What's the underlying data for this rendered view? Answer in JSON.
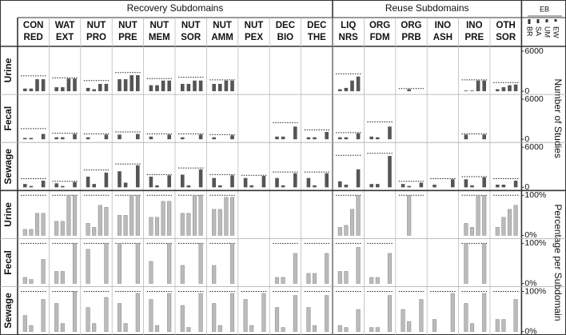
{
  "chart_data": {
    "type": "small_multiples_bar",
    "groups": [
      {
        "title": "Recovery Subdomains",
        "count": 10
      },
      {
        "title": "Reuse Subdomains",
        "count": 6
      }
    ],
    "columns": [
      [
        "CON",
        "RED"
      ],
      [
        "WAT",
        "EXT"
      ],
      [
        "NUT",
        "PRO"
      ],
      [
        "NUT",
        "PRE"
      ],
      [
        "NUT",
        "MEM"
      ],
      [
        "NUT",
        "SOR"
      ],
      [
        "NUT",
        "AMM"
      ],
      [
        "NUT",
        "PEX"
      ],
      [
        "DEC",
        "BIO"
      ],
      [
        "DEC",
        "THE"
      ],
      [
        "LIQ",
        "NRS"
      ],
      [
        "ORG",
        "FDM"
      ],
      [
        "ORG",
        "PRB"
      ],
      [
        "INO",
        "ASH"
      ],
      [
        "INO",
        "PRE"
      ],
      [
        "OTH",
        "SOR"
      ]
    ],
    "legend": {
      "title": "EB",
      "series": [
        "BR",
        "SA",
        "UM",
        "EW"
      ]
    },
    "panels": [
      {
        "axis_label": "Number of Studies",
        "ylim": [
          0,
          6000
        ],
        "yticks": [
          0,
          6000
        ],
        "color": "#555555",
        "rows": [
          {
            "name": "Urine",
            "cells": [
              [
                400,
                400,
                1800,
                1800
              ],
              [
                600,
                600,
                1900,
                1900
              ],
              [
                500,
                300,
                1100,
                1100
              ],
              [
                1800,
                1800,
                2400,
                2400
              ],
              [
                900,
                900,
                1600,
                1600
              ],
              [
                1100,
                1100,
                1600,
                1600
              ],
              [
                1100,
                1100,
                1600,
                1600
              ],
              null,
              null,
              null,
              [
                300,
                500,
                1600,
                2200
              ],
              null,
              [
                0,
                300,
                0,
                0
              ],
              null,
              [
                100,
                100,
                1600,
                1600
              ],
              [
                300,
                600,
                900,
                1000
              ]
            ],
            "totals": [
              2300,
              2000,
              1600,
              2800,
              1900,
              2100,
              1700,
              null,
              null,
              null,
              2600,
              null,
              400,
              null,
              1700,
              1300
            ]
          },
          {
            "name": "Fecal",
            "cells": [
              [
                200,
                200,
                0,
                800
              ],
              [
                300,
                300,
                0,
                800
              ],
              [
                300,
                0,
                0,
                700
              ],
              [
                700,
                0,
                0,
                800
              ],
              [
                400,
                0,
                0,
                700
              ],
              [
                300,
                0,
                0,
                700
              ],
              [
                300,
                0,
                0,
                600
              ],
              null,
              [
                400,
                400,
                0,
                1900
              ],
              [
                300,
                300,
                0,
                1100
              ],
              [
                300,
                300,
                0,
                900
              ],
              [
                400,
                300,
                0,
                1900
              ],
              null,
              null,
              [
                700,
                0,
                0,
                700
              ],
              null
            ],
            "totals": [
              1600,
              900,
              800,
              1100,
              800,
              800,
              700,
              null,
              2500,
              1400,
              1000,
              2600,
              null,
              null,
              800,
              null
            ]
          },
          {
            "name": "Sewage",
            "cells": [
              [
                500,
                200,
                0,
                1000
              ],
              [
                600,
                200,
                0,
                800
              ],
              [
                1600,
                500,
                0,
                2200
              ],
              [
                2400,
                700,
                0,
                3300
              ],
              [
                1600,
                300,
                0,
                1800
              ],
              [
                1900,
                300,
                0,
                2700
              ],
              [
                1400,
                300,
                0,
                1800
              ],
              [
                1400,
                300,
                0,
                1700
              ],
              [
                1400,
                300,
                0,
                2100
              ],
              [
                1400,
                300,
                0,
                2100
              ],
              [
                900,
                400,
                0,
                2700
              ],
              [
                500,
                500,
                0,
                4700
              ],
              [
                500,
                200,
                0,
                700
              ],
              [
                400,
                0,
                0,
                1200
              ],
              [
                1200,
                300,
                0,
                1500
              ],
              [
                400,
                400,
                0,
                1000
              ]
            ],
            "totals": [
              1300,
              900,
              2600,
              3500,
              1900,
              2900,
              1900,
              1800,
              2300,
              2300,
              4800,
              5100,
              900,
              1300,
              1600,
              1300
            ]
          }
        ]
      },
      {
        "axis_label": "Percentage per Subdomain",
        "ylim": [
          0,
          100
        ],
        "yticks": [
          {
            "value": 0,
            "label": "0%"
          },
          {
            "value": 100,
            "label": "100%"
          }
        ],
        "color": "#bbbbbb",
        "rows": [
          {
            "name": "Urine",
            "cells": [
              [
                15,
                15,
                55,
                55
              ],
              [
                35,
                35,
                100,
                100
              ],
              [
                30,
                20,
                75,
                70
              ],
              [
                50,
                50,
                100,
                100
              ],
              [
                45,
                45,
                85,
                85
              ],
              [
                55,
                55,
                100,
                100
              ],
              [
                65,
                65,
                95,
                95
              ],
              null,
              null,
              null,
              [
                20,
                25,
                65,
                100
              ],
              null,
              [
                0,
                100,
                0,
                0
              ],
              null,
              [
                30,
                20,
                100,
                100
              ],
              [
                20,
                45,
                65,
                75
              ]
            ]
          },
          {
            "name": "Fecal",
            "cells": [
              [
                15,
                10,
                0,
                60
              ],
              [
                30,
                30,
                0,
                100
              ],
              [
                85,
                0,
                0,
                100
              ],
              [
                100,
                0,
                0,
                100
              ],
              [
                55,
                0,
                0,
                100
              ],
              [
                45,
                0,
                0,
                100
              ],
              [
                45,
                0,
                0,
                100
              ],
              null,
              [
                15,
                15,
                0,
                75
              ],
              [
                25,
                25,
                0,
                75
              ],
              [
                30,
                30,
                0,
                90
              ],
              [
                15,
                15,
                0,
                75
              ],
              null,
              null,
              [
                100,
                0,
                0,
                100
              ],
              null
            ]
          },
          {
            "name": "Sewage",
            "cells": [
              [
                40,
                15,
                0,
                80
              ],
              [
                70,
                20,
                0,
                100
              ],
              [
                60,
                20,
                0,
                85
              ],
              [
                70,
                20,
                0,
                95
              ],
              [
                80,
                15,
                0,
                95
              ],
              [
                65,
                10,
                0,
                95
              ],
              [
                70,
                15,
                0,
                95
              ],
              [
                80,
                15,
                0,
                95
              ],
              [
                60,
                10,
                0,
                90
              ],
              [
                60,
                15,
                0,
                90
              ],
              [
                15,
                10,
                0,
                55
              ],
              [
                10,
                10,
                0,
                90
              ],
              [
                55,
                25,
                0,
                80
              ],
              [
                30,
                0,
                0,
                95
              ],
              [
                70,
                20,
                0,
                95
              ],
              [
                30,
                30,
                0,
                80
              ]
            ]
          }
        ]
      }
    ]
  }
}
